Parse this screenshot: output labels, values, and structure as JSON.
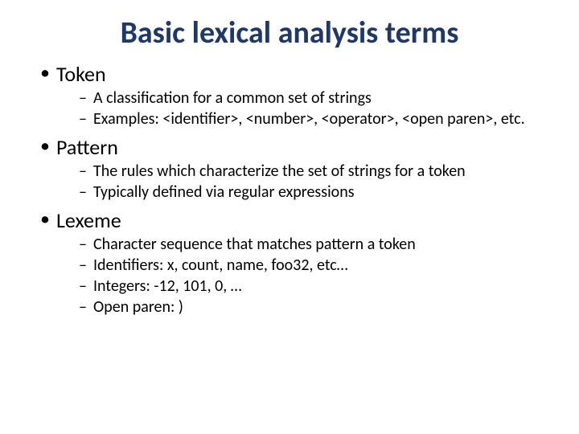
{
  "title": "Basic lexical analysis terms",
  "title_color": "#1f3864",
  "title_fontsize": 38,
  "body_fontsize_l1": 26,
  "body_fontsize_l2": 20,
  "background_color": "#ffffff",
  "text_color": "#000000",
  "bullets": [
    {
      "label": "Token",
      "sub": [
        "A classification for a common set of strings",
        "Examples: <identifier>, <number>, <operator>, <open paren>, etc."
      ]
    },
    {
      "label": "Pattern",
      "sub": [
        "The rules which characterize the set of strings for a token",
        "Typically defined via regular expressions"
      ]
    },
    {
      "label": "Lexeme",
      "sub": [
        "Character sequence that matches pattern a token",
        "Identifiers: x, count, name, foo32, etc…",
        "Integers: -12, 101, 0, …",
        "Open paren: )"
      ]
    }
  ]
}
